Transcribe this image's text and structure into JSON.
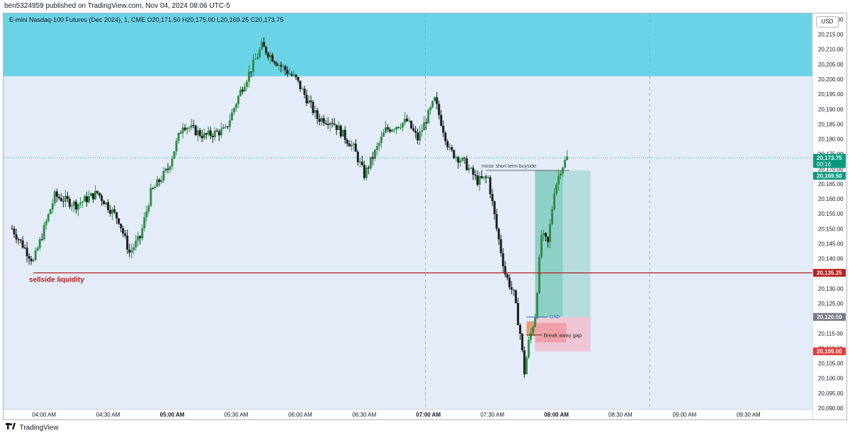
{
  "header": {
    "published_line": "ben5324959 published on TradingView.com, Nov 04, 2024 08:06 UTC-5"
  },
  "symbol": {
    "line": "E-mini Nasdaq-100 Futures (Dec 2024), 1, CME  O20,171.50  H20,175.00  L20,169.25  C20,173.75",
    "currency": "USD"
  },
  "footer": {
    "brand": "TradingView",
    "logo_icon": "tradingview-logo-icon"
  },
  "colors": {
    "background": "#e3ecf8",
    "supply_zone": "#6ad3e6",
    "candle_up": "#2f8f46",
    "candle_down": "#1a1a1a",
    "sellside_line": "#b71c1c",
    "target_zone": "#b5dcdf",
    "target_zone_dark": "#8ecfc7",
    "stop_zone": "#efc6d4",
    "breakaway_box": "#f0a0a8",
    "gap_fill": "#ef8c5a",
    "cisd_line": "#1565c0",
    "current_price_tag": "#089981",
    "tag_stop": "#e53935",
    "tag_entry": "#787b86"
  },
  "annotations": {
    "sellside": "sellside liquidity",
    "buyside": "minor short term buyside",
    "cisd": "CISD",
    "breakaway": "Break away gap"
  },
  "price_tags": {
    "current": "20,173.75",
    "countdown": "00:16",
    "target": "20,169.50",
    "sellside": "20,135.25",
    "entry": "20,120.50",
    "stop": "20,109.00"
  },
  "chart_data": {
    "type": "candlestick",
    "title": "E-mini Nasdaq-100 Futures (Dec 2024), 1, CME",
    "timeframe": "1 minute",
    "currency": "USD",
    "ohlc_last": {
      "open": 20171.5,
      "high": 20175.0,
      "low": 20169.25,
      "close": 20173.75
    },
    "x_ticks": [
      "04:00 AM",
      "04:30 AM",
      "05:00 AM",
      "05:30 AM",
      "06:00 AM",
      "06:30 AM",
      "07:00 AM",
      "07:30 AM",
      "08:00 AM",
      "08:30 AM",
      "09:00 AM",
      "09:30 AM"
    ],
    "x_range": [
      "03:45 AM",
      "09:45 AM"
    ],
    "y_ticks": [
      "20,090.00",
      "20,095.00",
      "20,100.00",
      "20,105.00",
      "20,110.00",
      "20,115.00",
      "20,120.00",
      "20,125.00",
      "20,130.00",
      "20,135.00",
      "20,140.00",
      "20,145.00",
      "20,150.00",
      "20,155.00",
      "20,160.00",
      "20,165.00",
      "20,170.00",
      "20,175.00",
      "20,180.00",
      "20,185.00",
      "20,190.00",
      "20,195.00",
      "20,200.00",
      "20,205.00",
      "20,210.00",
      "20,215.00",
      "20,220.00"
    ],
    "ylim": [
      20090,
      20222
    ],
    "price_path": [
      {
        "t": "03:45 AM",
        "p": 20150
      },
      {
        "t": "03:55 AM",
        "p": 20139
      },
      {
        "t": "04:05 AM",
        "p": 20161
      },
      {
        "t": "04:15 AM",
        "p": 20158
      },
      {
        "t": "04:25 AM",
        "p": 20162
      },
      {
        "t": "04:35 AM",
        "p": 20153
      },
      {
        "t": "04:40 AM",
        "p": 20142
      },
      {
        "t": "04:45 AM",
        "p": 20147
      },
      {
        "t": "04:50 AM",
        "p": 20162
      },
      {
        "t": "04:58 AM",
        "p": 20170
      },
      {
        "t": "05:05 AM",
        "p": 20185
      },
      {
        "t": "05:15 AM",
        "p": 20181
      },
      {
        "t": "05:25 AM",
        "p": 20183
      },
      {
        "t": "05:32 AM",
        "p": 20196
      },
      {
        "t": "05:42 AM",
        "p": 20211
      },
      {
        "t": "05:50 AM",
        "p": 20205
      },
      {
        "t": "05:58 AM",
        "p": 20200
      },
      {
        "t": "06:08 AM",
        "p": 20187
      },
      {
        "t": "06:15 AM",
        "p": 20186
      },
      {
        "t": "06:25 AM",
        "p": 20177
      },
      {
        "t": "06:30 AM",
        "p": 20168
      },
      {
        "t": "06:40 AM",
        "p": 20183
      },
      {
        "t": "06:50 AM",
        "p": 20186
      },
      {
        "t": "06:55 AM",
        "p": 20180
      },
      {
        "t": "07:03 AM",
        "p": 20193
      },
      {
        "t": "07:10 AM",
        "p": 20176
      },
      {
        "t": "07:17 AM",
        "p": 20172
      },
      {
        "t": "07:23 AM",
        "p": 20166
      },
      {
        "t": "07:28 AM",
        "p": 20167
      },
      {
        "t": "07:32 AM",
        "p": 20150
      },
      {
        "t": "07:36 AM",
        "p": 20135
      },
      {
        "t": "07:40 AM",
        "p": 20128
      },
      {
        "t": "07:43 AM",
        "p": 20115
      },
      {
        "t": "07:45 AM",
        "p": 20102
      },
      {
        "t": "07:47 AM",
        "p": 20112
      },
      {
        "t": "07:50 AM",
        "p": 20121
      },
      {
        "t": "07:53 AM",
        "p": 20148
      },
      {
        "t": "07:56 AM",
        "p": 20145
      },
      {
        "t": "07:59 AM",
        "p": 20163
      },
      {
        "t": "08:02 AM",
        "p": 20170
      },
      {
        "t": "08:05 AM",
        "p": 20173.75
      }
    ],
    "zones": [
      {
        "name": "supply zone",
        "y_from": 20201,
        "y_to": 20222
      },
      {
        "name": "target zone",
        "t_from": "07:50 AM",
        "t_to": "08:16 AM",
        "y_from": 20120.5,
        "y_to": 20169.5
      },
      {
        "name": "stop zone",
        "t_from": "07:50 AM",
        "t_to": "08:16 AM",
        "y_from": 20109,
        "y_to": 20120.5
      }
    ],
    "levels": [
      {
        "label": "sellside liquidity",
        "price": 20135.25
      },
      {
        "label": "minor short term buyside",
        "price": 20169.5
      },
      {
        "label": "CISD",
        "price": 20120.5
      },
      {
        "label": "Break away gap",
        "price": 20114.5
      }
    ],
    "grid": false
  }
}
